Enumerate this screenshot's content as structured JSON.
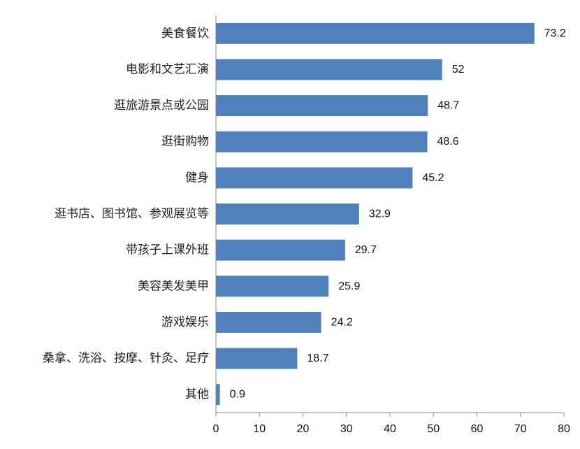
{
  "chart_data": {
    "type": "bar",
    "orientation": "horizontal",
    "categories": [
      "美食餐饮",
      "电影和文艺汇演",
      "逛旅游景点或公园",
      "逛街购物",
      "健身",
      "逛书店、图书馆、参观展览等",
      "带孩子上课外班",
      "美容美发美甲",
      "游戏娱乐",
      "桑拿、洗浴、按摩、针灸、足疗",
      "其他"
    ],
    "values": [
      73.2,
      52,
      48.7,
      48.6,
      45.2,
      32.9,
      29.7,
      25.9,
      24.2,
      18.7,
      0.9
    ],
    "value_labels": [
      "73.2",
      "52",
      "48.7",
      "48.6",
      "45.2",
      "32.9",
      "29.7",
      "25.9",
      "24.2",
      "18.7",
      "0.9"
    ],
    "xlim": [
      0,
      80
    ],
    "x_ticks": [
      "0",
      "10",
      "20",
      "30",
      "40",
      "50",
      "60",
      "70",
      "80"
    ],
    "title": "",
    "xlabel": "",
    "ylabel": "",
    "grid": false,
    "bar_color": "#4f81bd"
  }
}
